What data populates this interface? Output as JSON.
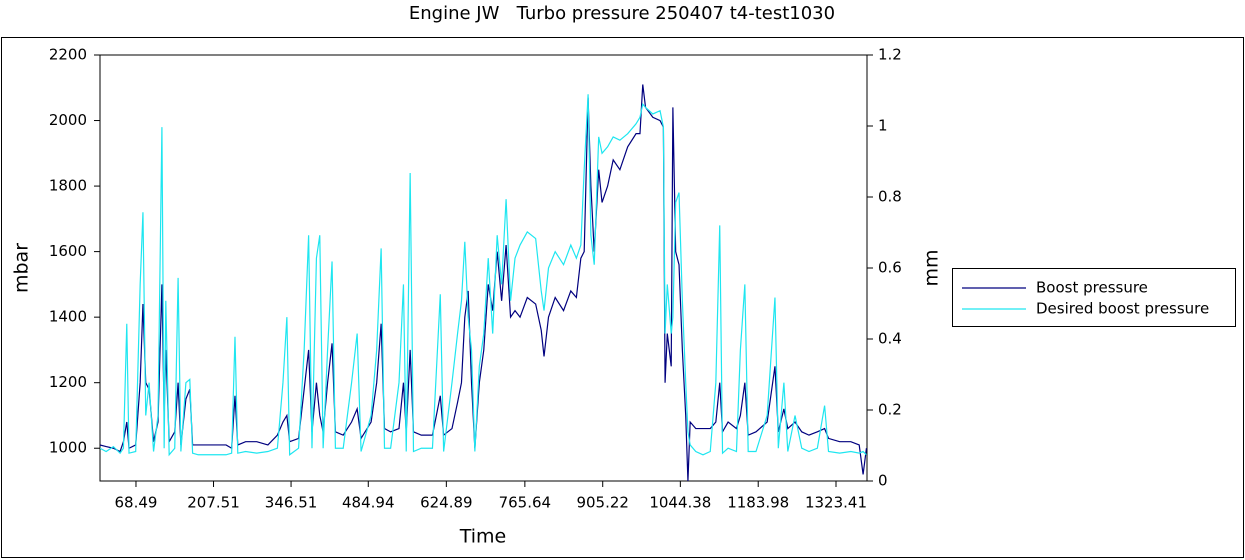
{
  "chart_data": {
    "type": "line",
    "title": "Engine JW   Turbo pressure 250407 t4-test1030",
    "xlabel": "Time",
    "ylabel": "mbar",
    "y2label": "mm",
    "xlim": [
      4,
      1379
    ],
    "xticks": [
      68.49,
      207.51,
      346.51,
      484.94,
      624.89,
      765.64,
      905.22,
      1044.38,
      1183.98,
      1323.41
    ],
    "ylim": [
      900,
      2200
    ],
    "yticks": [
      1000,
      1200,
      1400,
      1600,
      1800,
      2000,
      2200
    ],
    "y2lim": [
      0,
      1.2
    ],
    "y2ticks": [
      0,
      0.2,
      0.4,
      0.6,
      0.8,
      1,
      1.2
    ],
    "legend": "right",
    "x": [
      4,
      15,
      28,
      40,
      46,
      52,
      56,
      68,
      76,
      81,
      86,
      92,
      100,
      108,
      115,
      119,
      122,
      128,
      138,
      144,
      149,
      158,
      165,
      170,
      180,
      200,
      230,
      240,
      246,
      251,
      265,
      285,
      305,
      322,
      332,
      339,
      344,
      360,
      370,
      378,
      384,
      392,
      398,
      404,
      412,
      420,
      426,
      440,
      455,
      465,
      472,
      490,
      500,
      508,
      514,
      525,
      540,
      548,
      553,
      560,
      566,
      580,
      600,
      614,
      620,
      635,
      645,
      652,
      658,
      664,
      670,
      676,
      684,
      692,
      700,
      708,
      716,
      724,
      732,
      740,
      748,
      757,
      770,
      785,
      795,
      800,
      808,
      820,
      835,
      848,
      858,
      866,
      872,
      879,
      884,
      890,
      898,
      904,
      914,
      924,
      936,
      950,
      965,
      972,
      977,
      982,
      995,
      1008,
      1014,
      1017,
      1021,
      1028,
      1031,
      1036,
      1042,
      1048,
      1054,
      1058,
      1062,
      1072,
      1085,
      1098,
      1108,
      1115,
      1120,
      1130,
      1145,
      1152,
      1160,
      1166,
      1180,
      1200,
      1214,
      1220,
      1230,
      1237,
      1250,
      1262,
      1275,
      1290,
      1303,
      1310,
      1330,
      1350,
      1365,
      1372,
      1378
    ],
    "series": [
      {
        "name": "Boost pressure",
        "color": "#00007f",
        "values": [
          1010,
          1005,
          1000,
          990,
          1020,
          1080,
          1000,
          1010,
          1200,
          1440,
          1200,
          1180,
          1020,
          1080,
          1500,
          1100,
          1300,
          1020,
          1050,
          1200,
          1010,
          1150,
          1180,
          1010,
          1010,
          1010,
          1010,
          1000,
          1160,
          1010,
          1020,
          1020,
          1010,
          1040,
          1080,
          1100,
          1020,
          1030,
          1180,
          1300,
          1050,
          1200,
          1100,
          1050,
          1200,
          1320,
          1050,
          1040,
          1080,
          1120,
          1030,
          1080,
          1200,
          1380,
          1060,
          1050,
          1060,
          1200,
          1050,
          1300,
          1050,
          1040,
          1040,
          1160,
          1040,
          1060,
          1140,
          1200,
          1400,
          1480,
          1200,
          1000,
          1200,
          1300,
          1500,
          1420,
          1600,
          1450,
          1620,
          1400,
          1420,
          1400,
          1460,
          1440,
          1360,
          1280,
          1400,
          1460,
          1420,
          1480,
          1460,
          1580,
          1600,
          2070,
          1800,
          1600,
          1850,
          1750,
          1800,
          1880,
          1850,
          1920,
          1960,
          1960,
          2110,
          2040,
          2010,
          2000,
          1980,
          1200,
          1350,
          1250,
          2040,
          1600,
          1560,
          1300,
          1100,
          900,
          1080,
          1060,
          1060,
          1060,
          1080,
          1200,
          1050,
          1080,
          1060,
          1100,
          1200,
          1040,
          1050,
          1080,
          1250,
          1050,
          1120,
          1060,
          1080,
          1050,
          1040,
          1050,
          1060,
          1030,
          1020,
          1020,
          1010,
          920,
          1000
        ]
      },
      {
        "name": "Desired boost pressure",
        "color": "#1ee6f0",
        "values": [
          1000,
          990,
          1005,
          985,
          1000,
          1380,
          985,
          990,
          1500,
          1720,
          1100,
          1200,
          990,
          1100,
          1980,
          1000,
          1450,
          980,
          1000,
          1520,
          990,
          1200,
          1210,
          985,
          980,
          980,
          980,
          985,
          1340,
          985,
          990,
          985,
          990,
          1000,
          1200,
          1400,
          980,
          1000,
          1300,
          1650,
          1000,
          1580,
          1650,
          1000,
          1300,
          1570,
          1000,
          1000,
          1200,
          1350,
          990,
          1100,
          1300,
          1610,
          1000,
          1000,
          1200,
          1500,
          990,
          1840,
          990,
          1000,
          1000,
          1470,
          990,
          1200,
          1350,
          1450,
          1630,
          1400,
          1300,
          990,
          1250,
          1350,
          1580,
          1350,
          1650,
          1500,
          1760,
          1450,
          1580,
          1620,
          1660,
          1640,
          1480,
          1420,
          1550,
          1600,
          1560,
          1620,
          1580,
          1620,
          1850,
          2080,
          1650,
          1560,
          1950,
          1900,
          1920,
          1950,
          1940,
          1960,
          1990,
          2010,
          2050,
          2040,
          2020,
          2030,
          1980,
          1350,
          1500,
          1350,
          1400,
          1750,
          1780,
          1450,
          1200,
          1050,
          1010,
          990,
          980,
          990,
          1200,
          1680,
          985,
          1000,
          990,
          1300,
          1500,
          990,
          990,
          1100,
          1460,
          1000,
          1200,
          990,
          1100,
          1000,
          990,
          1000,
          1130,
          990,
          985,
          990,
          985,
          990,
          980
        ]
      }
    ]
  }
}
